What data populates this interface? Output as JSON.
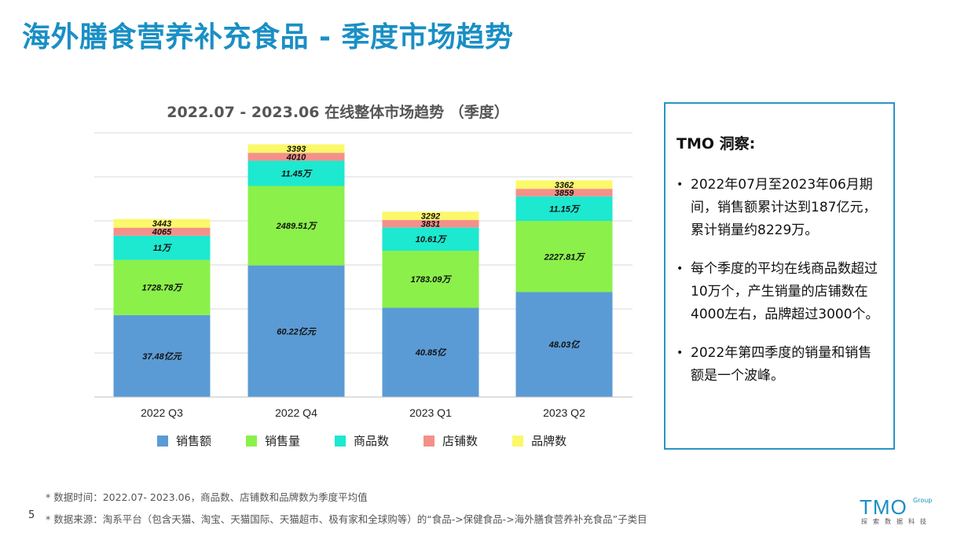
{
  "page": {
    "title": "海外膳食营养补充食品 - 季度市场趋势",
    "page_number": "5"
  },
  "chart_data": {
    "type": "bar",
    "stacked": true,
    "title": "2022.07 - 2023.06 在线整体市场趋势 （季度）",
    "categories": [
      "2022 Q3",
      "2022 Q4",
      "2023 Q1",
      "2023 Q2"
    ],
    "series": [
      {
        "name": "销售额",
        "color": "#5b9bd5",
        "values": [
          37.48,
          60.22,
          40.85,
          48.03
        ],
        "labels": [
          "37.48亿元",
          "60.22亿元",
          "40.85亿",
          "48.03亿"
        ]
      },
      {
        "name": "销售量",
        "color": "#8bf04a",
        "values": [
          1728.78,
          2489.51,
          1783.09,
          2227.81
        ],
        "labels": [
          "1728.78万",
          "2489.51万",
          "1783.09万",
          "2227.81万"
        ]
      },
      {
        "name": "商品数",
        "color": "#1de8d0",
        "values": [
          11,
          11.45,
          10.61,
          11.15
        ],
        "labels": [
          "11万",
          "11.45万",
          "10.61万",
          "11.15万"
        ]
      },
      {
        "name": "店铺数",
        "color": "#f4908a",
        "values": [
          4065,
          4010,
          3831,
          3859
        ],
        "labels": [
          "4065",
          "4010",
          "3831",
          "3859"
        ]
      },
      {
        "name": "品牌数",
        "color": "#fbf86a",
        "values": [
          3443,
          3393,
          3292,
          3362
        ],
        "labels": [
          "3443",
          "3393",
          "3292",
          "3362"
        ]
      }
    ],
    "grid": true,
    "legend": "bottom"
  },
  "insight": {
    "title": "TMO 洞察:",
    "bullets": [
      "2022年07月至2023年06月期间，销售额累计达到187亿元，累计销量约8229万。",
      "每个季度的平均在线商品数超过10万个，产生销量的店铺数在4000左右，品牌超过3000个。",
      "2022年第四季度的销量和销售额是一个波峰。"
    ]
  },
  "footnotes": {
    "time": "* 数据时间：2022.07- 2023.06，商品数、店铺数和品牌数为季度平均值",
    "source": "* 数据来源：淘系平台（包含天猫、淘宝、天猫国际、天猫超市、极有家和全球购等）的“食品->保健食品->海外膳食营养补充食品”子类目"
  },
  "logo": {
    "main": "TMO",
    "group": "Group",
    "sub": "探索数据科技"
  }
}
